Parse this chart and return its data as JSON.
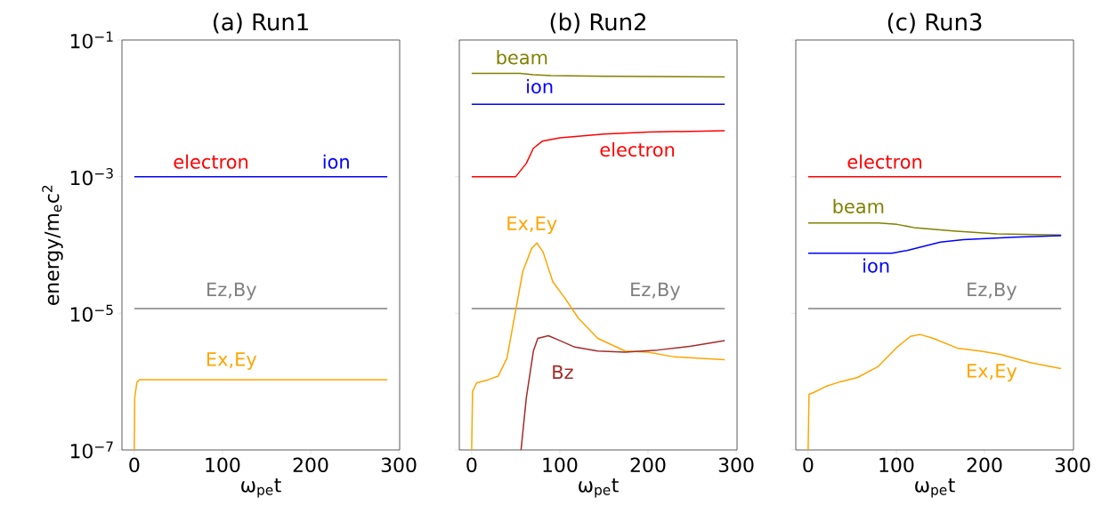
{
  "chart_data": [
    {
      "type": "line",
      "title": "(a) Run1",
      "xlabel": "ω$_{pe}$t",
      "ylabel": "energy/m$_{e}$c$^{2}$",
      "log": "y",
      "xlim": [
        -14,
        301
      ],
      "ylim": [
        1e-07,
        0.1
      ],
      "xticks": [
        0,
        100,
        200,
        300
      ],
      "yticks": [
        {
          "value": 1e-07,
          "label": "10$^{−7}$"
        },
        {
          "value": 1e-05,
          "label": "10$^{−5}$"
        },
        {
          "value": 0.001,
          "label": "10$^{−3}$"
        },
        {
          "value": 0.1,
          "label": "10$^{−1}$"
        }
      ],
      "series": [
        {
          "name": "electron",
          "color": "#ff0000",
          "values": [
            null
          ]
        },
        {
          "name": "ion",
          "color": "#0000ff",
          "x": [
            0,
            287
          ],
          "values": [
            0.001,
            0.001
          ]
        },
        {
          "name": "Ez,By",
          "color": "#808080",
          "x": [
            0,
            287
          ],
          "values": [
            1.17e-05,
            1.17e-05
          ]
        },
        {
          "name": "Ex,Ey",
          "color": "#ffa500",
          "x": [
            0,
            0.5,
            3,
            6,
            287
          ],
          "values": [
            1e-07,
            5.9e-07,
            9.8e-07,
            1.07e-06,
            1.07e-06
          ]
        }
      ]
    },
    {
      "type": "line",
      "title": "(b) Run2",
      "xlabel": "ω$_{pe}$t",
      "log": "y",
      "xlim": [
        -14,
        301
      ],
      "ylim": [
        1e-07,
        0.1
      ],
      "xticks": [
        0,
        100,
        200,
        300
      ],
      "yticks": [
        {
          "value": 1e-07,
          "label": null
        },
        {
          "value": 1e-05,
          "label": null
        },
        {
          "value": 0.001,
          "label": null
        },
        {
          "value": 0.1,
          "label": null
        }
      ],
      "tick_labels": "x",
      "series": [
        {
          "name": "beam",
          "color": "#808000",
          "x": [
            0,
            55,
            70,
            90,
            150,
            287
          ],
          "values": [
            0.0324,
            0.0324,
            0.031,
            0.0301,
            0.0294,
            0.0289
          ]
        },
        {
          "name": "ion",
          "color": "#0000ff",
          "x": [
            0,
            287
          ],
          "values": [
            0.0115,
            0.0115
          ]
        },
        {
          "name": "electron",
          "color": "#ff0000",
          "x": [
            0,
            50,
            53,
            62,
            70,
            80,
            100,
            150,
            200,
            287
          ],
          "values": [
            0.001,
            0.001,
            0.00112,
            0.00157,
            0.0026,
            0.0033,
            0.0037,
            0.0042,
            0.0045,
            0.0047
          ]
        },
        {
          "name": "Ez,By",
          "color": "#808080",
          "x": [
            0,
            287
          ],
          "values": [
            1.17e-05,
            1.17e-05
          ]
        },
        {
          "name": "Ex,Ey",
          "color": "#ffa500",
          "x": [
            0,
            1,
            5.7,
            19,
            30,
            40,
            49,
            58,
            68,
            74,
            81,
            92,
            106,
            121,
            143,
            174,
            200,
            230,
            287
          ],
          "values": [
            1e-07,
            7.2e-07,
            9.6e-07,
            1.07e-06,
            1.2e-06,
            2.2e-06,
            9.5e-06,
            4.1e-05,
            8.9e-05,
            0.000107,
            7.9e-05,
            2.9e-05,
            1.65e-05,
            8.5e-06,
            4.3e-06,
            2.8e-06,
            2.7e-06,
            2.3e-06,
            2.1e-06
          ]
        },
        {
          "name": "Bz",
          "color": "#a52a2a",
          "x": [
            56,
            62,
            70,
            75,
            87,
            98,
            117,
            143,
            174,
            211,
            249,
            287
          ],
          "values": [
            1e-07,
            5.8e-07,
            2.8e-06,
            4.3e-06,
            4.7e-06,
            4.1e-06,
            3.2e-06,
            2.8e-06,
            2.7e-06,
            2.9e-06,
            3.3e-06,
            4e-06
          ]
        }
      ]
    },
    {
      "type": "line",
      "title": "(c) Run3",
      "xlabel": "ω$_{pe}$t",
      "log": "y",
      "xlim": [
        -14,
        301
      ],
      "ylim": [
        1e-07,
        0.1
      ],
      "xticks": [
        0,
        100,
        200,
        300
      ],
      "yticks": [
        {
          "value": 1e-07,
          "label": null
        },
        {
          "value": 1e-05,
          "label": null
        },
        {
          "value": 0.001,
          "label": null
        },
        {
          "value": 0.1,
          "label": null
        }
      ],
      "tick_labels": "x",
      "series": [
        {
          "name": "electron",
          "color": "#ff0000",
          "x": [
            0,
            287
          ],
          "values": [
            0.001,
            0.001
          ]
        },
        {
          "name": "beam",
          "color": "#808000",
          "x": [
            0,
            80,
            101,
            120,
            165,
            214,
            287
          ],
          "values": [
            0.00021,
            0.00021,
            0.0002,
            0.00018,
            0.00016,
            0.000145,
            0.00014
          ]
        },
        {
          "name": "ion",
          "color": "#0000ff",
          "x": [
            0,
            95,
            112,
            127,
            150,
            176,
            233,
            287
          ],
          "values": [
            7.6e-05,
            7.6e-05,
            8.3e-05,
            9.3e-05,
            0.00011,
            0.00012,
            0.00013,
            0.000137
          ]
        },
        {
          "name": "Ez,By",
          "color": "#808080",
          "x": [
            0,
            287
          ],
          "values": [
            1.17e-05,
            1.17e-05
          ]
        },
        {
          "name": "Ex,Ey",
          "color": "#ffa500",
          "x": [
            0,
            1,
            6,
            20,
            37,
            56,
            79,
            101,
            116,
            127,
            142,
            169,
            195,
            218,
            252,
            287
          ],
          "values": [
            1e-07,
            6.5e-07,
            6.9e-07,
            8.5e-07,
            1e-06,
            1.15e-06,
            1.65e-06,
            3.2e-06,
            4.6e-06,
            4.9e-06,
            4.3e-06,
            3.1e-06,
            2.8e-06,
            2.5e-06,
            1.9e-06,
            1.55e-06
          ]
        }
      ]
    }
  ]
}
